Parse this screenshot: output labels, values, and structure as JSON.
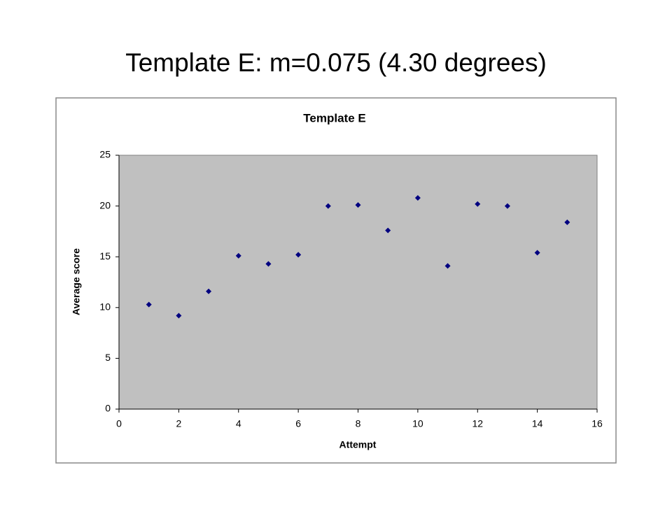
{
  "slide_title": "Template E: m=0.075 (4.30 degrees)",
  "chart_data": {
    "type": "scatter",
    "title": "Template E",
    "x_label": "Attempt",
    "y_label": "Average score",
    "x": [
      1,
      2,
      3,
      4,
      5,
      6,
      7,
      8,
      9,
      10,
      11,
      12,
      13,
      14,
      15
    ],
    "series": [
      {
        "color": "#000080",
        "values": [
          10.3,
          9.2,
          11.6,
          15.1,
          14.3,
          15.2,
          20.0,
          20.1,
          17.6,
          20.8,
          14.1,
          20.2,
          20.0,
          15.4,
          18.4
        ]
      }
    ],
    "xlim": [
      0,
      16
    ],
    "xticks": [
      0,
      2,
      4,
      6,
      8,
      10,
      12,
      14,
      16
    ],
    "ylim": [
      0,
      25
    ],
    "yticks": [
      0,
      5,
      10,
      15,
      20,
      25
    ],
    "grid": false,
    "plot_background": "#c0c0c0"
  }
}
